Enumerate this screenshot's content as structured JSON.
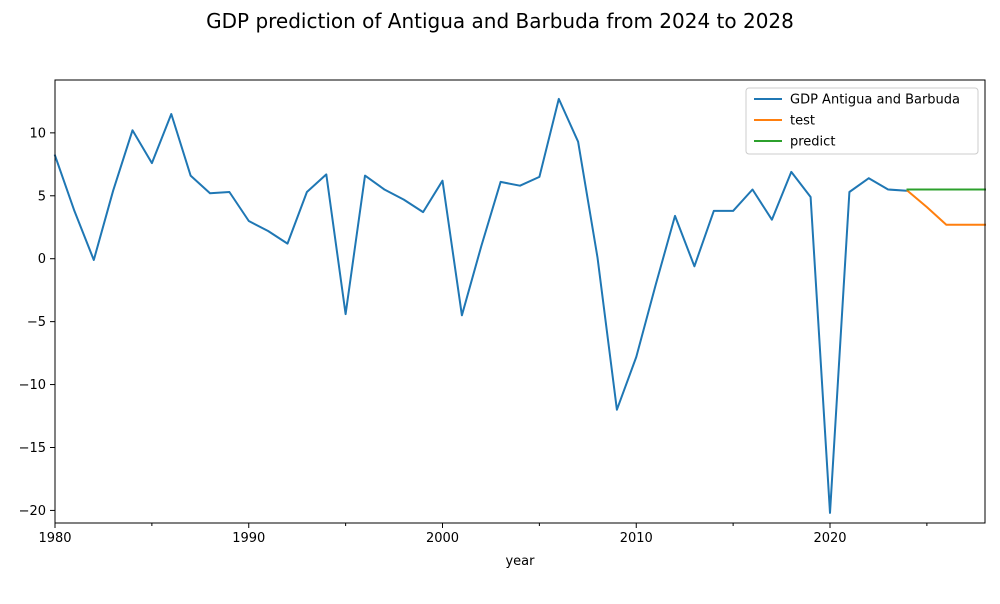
{
  "chart_data": {
    "type": "line",
    "title": "GDP prediction of Antigua and Barbuda from 2024 to 2028",
    "xlabel": "year",
    "ylabel": "",
    "xlim": [
      1980,
      2028
    ],
    "ylim": [
      -21,
      14.2
    ],
    "xticks": [
      1980,
      1990,
      2000,
      2010,
      2020
    ],
    "xticks_minor": [
      1985,
      1995,
      2005,
      2015,
      2025
    ],
    "yticks": [
      10,
      5,
      0,
      -5,
      -10,
      -15,
      -20
    ],
    "grid": false,
    "legend_position": "top-right",
    "series": [
      {
        "name": "GDP Antigua and Barbuda",
        "color": "#1f77b4",
        "x": [
          1980,
          1981,
          1982,
          1983,
          1984,
          1985,
          1986,
          1987,
          1988,
          1989,
          1990,
          1991,
          1992,
          1993,
          1994,
          1995,
          1996,
          1997,
          1998,
          1999,
          2000,
          2001,
          2002,
          2003,
          2004,
          2005,
          2006,
          2007,
          2008,
          2009,
          2010,
          2011,
          2012,
          2013,
          2014,
          2015,
          2016,
          2017,
          2018,
          2019,
          2020,
          2021,
          2022,
          2023,
          2024
        ],
        "y": [
          8.2,
          3.8,
          -0.1,
          5.4,
          10.2,
          7.6,
          11.5,
          6.6,
          5.2,
          5.3,
          3.0,
          2.2,
          1.2,
          5.3,
          6.7,
          -4.4,
          6.6,
          5.5,
          4.7,
          3.7,
          6.2,
          -4.5,
          1.0,
          6.1,
          5.8,
          6.5,
          12.7,
          9.3,
          0.1,
          -12.0,
          -7.8,
          -2.1,
          3.4,
          -0.6,
          3.8,
          3.8,
          5.5,
          3.1,
          6.9,
          4.9,
          -20.2,
          5.3,
          6.4,
          5.5,
          5.4
        ]
      },
      {
        "name": "test",
        "color": "#ff7f0e",
        "x": [
          2024,
          2025,
          2026,
          2027,
          2028
        ],
        "y": [
          5.4,
          4.1,
          2.7,
          2.7,
          2.7
        ]
      },
      {
        "name": "predict",
        "color": "#2ca02c",
        "x": [
          2024,
          2025,
          2026,
          2027,
          2028
        ],
        "y": [
          5.5,
          5.5,
          5.5,
          5.5,
          5.5
        ]
      }
    ]
  }
}
